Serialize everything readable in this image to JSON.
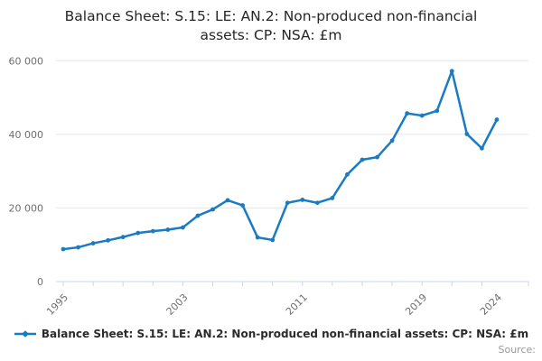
{
  "title": {
    "line1": "Balance Sheet: S.15: LE: AN.2: Non-produced non-financial",
    "line2": "assets: CP: NSA: £m"
  },
  "legend": {
    "label": "Balance Sheet: S.15: LE: AN.2: Non-produced non-financial assets: CP: NSA: £m"
  },
  "source": {
    "label": "Source:"
  },
  "colors": {
    "line": "#1a7bc2",
    "grid": "#e6e6e6",
    "axis": "#ccd6eb",
    "tick_text": "#6f6f6f"
  },
  "chart_data": {
    "type": "line",
    "title": "Balance Sheet: S.15: LE: AN.2: Non-produced non-financial assets: CP: NSA: £m",
    "x": [
      1995,
      1996,
      1997,
      1998,
      1999,
      2000,
      2001,
      2002,
      2003,
      2004,
      2005,
      2006,
      2007,
      2008,
      2009,
      2010,
      2011,
      2012,
      2013,
      2014,
      2015,
      2016,
      2017,
      2018,
      2019,
      2020,
      2021,
      2022,
      2023,
      2024
    ],
    "values": [
      8800,
      9300,
      10400,
      11200,
      12100,
      13200,
      13700,
      14100,
      14700,
      17900,
      19600,
      22100,
      20700,
      12000,
      11300,
      21400,
      22200,
      21400,
      22700,
      29100,
      33100,
      33800,
      38300,
      45700,
      45100,
      46400,
      57200,
      40100,
      36200,
      44000
    ],
    "xlabel": "",
    "ylabel": "",
    "ylim": [
      0,
      60000
    ],
    "yticks": [
      0,
      20000,
      40000,
      60000
    ],
    "ytick_labels": [
      "0",
      "20 000",
      "40 000",
      "60 000"
    ],
    "xtick_years": [
      1995,
      2003,
      2011,
      2019,
      2024
    ],
    "xtick_labels": [
      "1995",
      "2003",
      "2011",
      "2019",
      "2024"
    ],
    "minor_tick_interval_years": 2,
    "grid": "horizontal-only",
    "legend_position": "bottom-center",
    "marker": "small-circle"
  }
}
